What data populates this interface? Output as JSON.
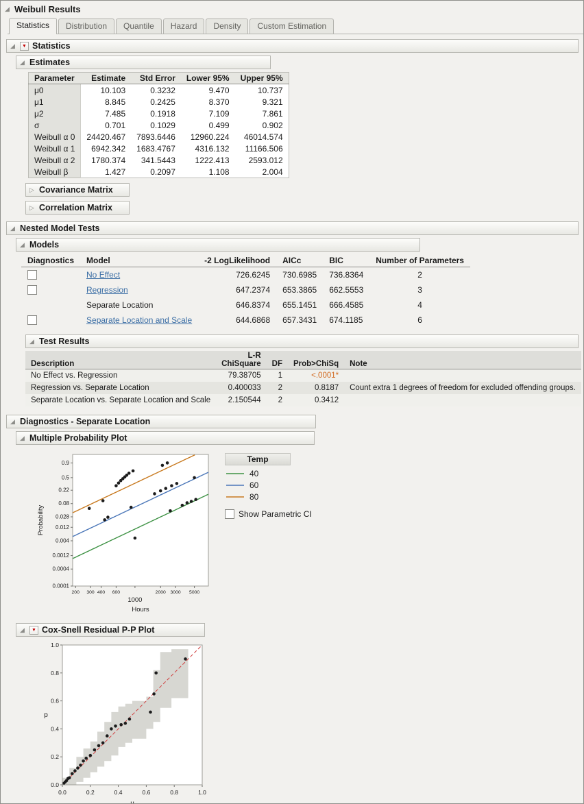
{
  "window": {
    "title": "Weibull Results"
  },
  "tabs": [
    {
      "label": "Statistics",
      "active": true
    },
    {
      "label": "Distribution",
      "active": false
    },
    {
      "label": "Quantile",
      "active": false
    },
    {
      "label": "Hazard",
      "active": false
    },
    {
      "label": "Density",
      "active": false
    },
    {
      "label": "Custom Estimation",
      "active": false
    }
  ],
  "colors": {
    "link": "#3b6ea5",
    "significant_pvalue": "#d2691e",
    "reference_line": "#d04040",
    "band_fill": "#d7d7d2"
  },
  "sections": {
    "statistics": {
      "title": "Statistics"
    },
    "estimates": {
      "title": "Estimates",
      "columns": [
        "Parameter",
        "Estimate",
        "Std Error",
        "Lower 95%",
        "Upper 95%"
      ],
      "rows": [
        [
          "μ0",
          "10.103",
          "0.3232",
          "9.470",
          "10.737"
        ],
        [
          "μ1",
          "8.845",
          "0.2425",
          "8.370",
          "9.321"
        ],
        [
          "μ2",
          "7.485",
          "0.1918",
          "7.109",
          "7.861"
        ],
        [
          "σ",
          "0.701",
          "0.1029",
          "0.499",
          "0.902"
        ],
        [
          "Weibull α 0",
          "24420.467",
          "7893.6446",
          "12960.224",
          "46014.574"
        ],
        [
          "Weibull α 1",
          "6942.342",
          "1683.4767",
          "4316.132",
          "11166.506"
        ],
        [
          "Weibull α 2",
          "1780.374",
          "341.5443",
          "1222.413",
          "2593.012"
        ],
        [
          "Weibull β",
          "1.427",
          "0.2097",
          "1.108",
          "2.004"
        ]
      ]
    },
    "covariance": {
      "title": "Covariance Matrix"
    },
    "correlation": {
      "title": "Correlation Matrix"
    },
    "nested": {
      "title": "Nested Model Tests"
    },
    "models": {
      "title": "Models",
      "columns": [
        "Diagnostics",
        "Model",
        "-2 LogLikelihood",
        "AICc",
        "BIC",
        "Number of Parameters"
      ],
      "rows": [
        {
          "checkbox": true,
          "link": true,
          "model": "No Effect",
          "loglik": "726.6245",
          "aicc": "730.6985",
          "bic": "736.8364",
          "nparm": "2"
        },
        {
          "checkbox": true,
          "link": true,
          "model": "Regression",
          "loglik": "647.2374",
          "aicc": "653.3865",
          "bic": "662.5553",
          "nparm": "3"
        },
        {
          "checkbox": false,
          "link": false,
          "model": "Separate Location",
          "loglik": "646.8374",
          "aicc": "655.1451",
          "bic": "666.4585",
          "nparm": "4"
        },
        {
          "checkbox": true,
          "link": true,
          "model": "Separate Location and Scale",
          "loglik": "644.6868",
          "aicc": "657.3431",
          "bic": "674.1185",
          "nparm": "6"
        }
      ]
    },
    "test_results": {
      "title": "Test Results",
      "columns": [
        "Description",
        "L-R ChiSquare",
        "DF",
        "Prob>ChiSq",
        "Note"
      ],
      "rows": [
        {
          "desc": "No Effect vs. Regression",
          "chisq": "79.38705",
          "df": "1",
          "prob": "<.0001*",
          "sig": true,
          "note": ""
        },
        {
          "desc": "Regression vs. Separate Location",
          "chisq": "0.400033",
          "df": "2",
          "prob": "0.8187",
          "sig": false,
          "note": "Count extra 1 degrees of freedom for excluded offending groups."
        },
        {
          "desc": "Separate Location vs. Separate Location and Scale",
          "chisq": "2.150544",
          "df": "2",
          "prob": "0.3412",
          "sig": false,
          "note": ""
        }
      ]
    },
    "diagnostics": {
      "title": "Diagnostics - Separate Location"
    }
  },
  "chart_data": [
    {
      "name": "multiple_probability_plot",
      "type": "scatter",
      "title": "Multiple Probability Plot",
      "xlabel": "Hours",
      "ylabel": "Probability",
      "x_scale": "log10",
      "y_scale": "weibull-probability",
      "xlim": [
        185,
        7300
      ],
      "ylim": [
        0.0001,
        0.99
      ],
      "x_ticks": [
        200,
        300,
        400,
        600,
        1000,
        2000,
        3000,
        5000
      ],
      "x_major_tick": 1000,
      "y_ticks": [
        "0.9",
        "0.5",
        "0.22",
        "0.08",
        "0.028",
        "0.012",
        "0.004",
        "0.0012",
        "0.0004",
        "0.0001"
      ],
      "grid": false,
      "legend_position": "right",
      "legend_title": "Temp",
      "ci_checkbox_label": "Show Parametric CI",
      "ci_checkbox_checked": false,
      "weibull_beta": 1.427,
      "series": [
        {
          "name": "40",
          "color": "#3e9244",
          "alpha": 24420.467,
          "points": [
            [
              1000,
              0.005
            ],
            [
              2600,
              0.045
            ],
            [
              3600,
              0.07
            ],
            [
              4100,
              0.085
            ],
            [
              4600,
              0.095
            ],
            [
              5200,
              0.11
            ]
          ]
        },
        {
          "name": "60",
          "color": "#4a76b8",
          "alpha": 6942.342,
          "points": [
            [
              440,
              0.022
            ],
            [
              480,
              0.027
            ],
            [
              900,
              0.06
            ],
            [
              1700,
              0.17
            ],
            [
              2000,
              0.21
            ],
            [
              2300,
              0.25
            ],
            [
              2700,
              0.3
            ],
            [
              3100,
              0.35
            ],
            [
              5000,
              0.5
            ]
          ]
        },
        {
          "name": "80",
          "color": "#c8791e",
          "alpha": 1780.374,
          "points": [
            [
              290,
              0.055
            ],
            [
              420,
              0.1
            ],
            [
              600,
              0.3
            ],
            [
              640,
              0.36
            ],
            [
              680,
              0.42
            ],
            [
              720,
              0.47
            ],
            [
              760,
              0.52
            ],
            [
              800,
              0.57
            ],
            [
              850,
              0.63
            ],
            [
              950,
              0.7
            ],
            [
              2100,
              0.85
            ],
            [
              2400,
              0.9
            ]
          ]
        }
      ]
    },
    {
      "name": "cox_snell_residual_pp_plot",
      "type": "scatter",
      "title": "Cox-Snell Residual P-P Plot",
      "xlabel": "u",
      "ylabel": "p",
      "xlim": [
        0,
        1
      ],
      "ylim": [
        0,
        1
      ],
      "x_ticks": [
        0.0,
        0.2,
        0.4,
        0.6,
        0.8,
        1.0
      ],
      "y_ticks": [
        0.0,
        0.2,
        0.4,
        0.6,
        0.8,
        1.0
      ],
      "grid": false,
      "reference_line": {
        "from": [
          0,
          0
        ],
        "to": [
          1,
          1
        ],
        "style": "dashed",
        "color": "#d04040"
      },
      "band": [
        [
          0.0,
          0.0,
          0.05
        ],
        [
          0.05,
          0.0,
          0.12
        ],
        [
          0.1,
          0.02,
          0.2
        ],
        [
          0.15,
          0.05,
          0.26
        ],
        [
          0.2,
          0.09,
          0.31
        ],
        [
          0.25,
          0.13,
          0.38
        ],
        [
          0.3,
          0.17,
          0.45
        ],
        [
          0.35,
          0.21,
          0.52
        ],
        [
          0.4,
          0.27,
          0.56
        ],
        [
          0.45,
          0.3,
          0.58
        ],
        [
          0.5,
          0.33,
          0.6
        ],
        [
          0.6,
          0.4,
          0.63
        ],
        [
          0.65,
          0.45,
          0.82
        ],
        [
          0.7,
          0.55,
          0.95
        ],
        [
          0.78,
          0.62,
          0.97
        ],
        [
          0.9,
          0.66,
          0.97
        ]
      ],
      "points": [
        [
          0.01,
          0.01
        ],
        [
          0.02,
          0.02
        ],
        [
          0.03,
          0.03
        ],
        [
          0.04,
          0.045
        ],
        [
          0.05,
          0.05
        ],
        [
          0.07,
          0.08
        ],
        [
          0.09,
          0.1
        ],
        [
          0.11,
          0.12
        ],
        [
          0.13,
          0.14
        ],
        [
          0.15,
          0.17
        ],
        [
          0.17,
          0.19
        ],
        [
          0.2,
          0.21
        ],
        [
          0.23,
          0.25
        ],
        [
          0.26,
          0.28
        ],
        [
          0.29,
          0.3
        ],
        [
          0.32,
          0.35
        ],
        [
          0.35,
          0.4
        ],
        [
          0.38,
          0.42
        ],
        [
          0.42,
          0.43
        ],
        [
          0.45,
          0.44
        ],
        [
          0.48,
          0.47
        ],
        [
          0.63,
          0.52
        ],
        [
          0.655,
          0.65
        ],
        [
          0.67,
          0.8
        ],
        [
          0.88,
          0.9
        ]
      ]
    }
  ]
}
